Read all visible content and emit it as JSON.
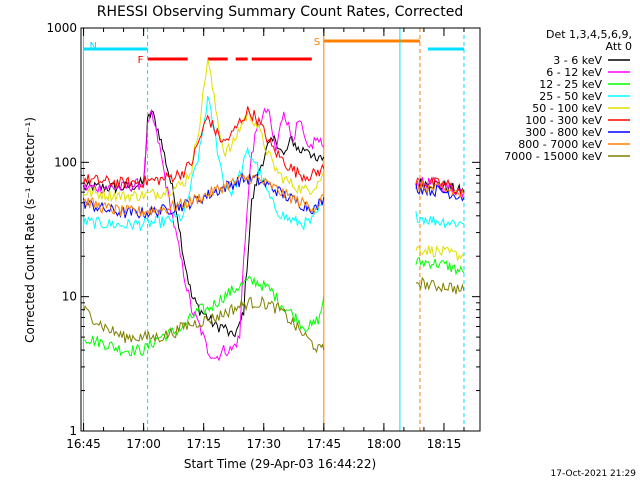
{
  "chart_data": {
    "type": "line",
    "title": "RHESSI Observing Summary Count Rates, Corrected",
    "xlabel": "Start Time (29-Apr-03 16:44:22)",
    "ylabel": "Corrected Count Rate (s⁻¹ detector⁻¹)",
    "y_scale": "log",
    "ylim": [
      1,
      1000
    ],
    "xlim": [
      "16:44:22",
      "18:24:00"
    ],
    "x_ticks": [
      "16:45",
      "17:00",
      "17:15",
      "17:30",
      "17:45",
      "18:00",
      "18:15"
    ],
    "y_ticks": [
      "1",
      "10",
      "100",
      "1000"
    ],
    "legend_header": [
      "Det 1,3,4,5,6,9,",
      "Att 0"
    ],
    "legend_position": "top-right",
    "timestamp": "17-Oct-2021 21:29",
    "flags": [
      {
        "label": "N",
        "color": "#00e0ff",
        "segments": [
          [
            "16:45",
            "17:01"
          ],
          [
            "18:11",
            "18:20"
          ]
        ]
      },
      {
        "label": "F",
        "color": "#ff0000",
        "segments": [
          [
            "17:01",
            "17:11"
          ],
          [
            "17:16",
            "17:21"
          ],
          [
            "17:23",
            "17:26"
          ],
          [
            "17:27",
            "17:42"
          ]
        ]
      },
      {
        "label": "S",
        "color": "#ff8000",
        "segments": [
          [
            "17:45",
            "18:09"
          ]
        ]
      }
    ],
    "vlines": [
      {
        "time": "16:45",
        "color": "#00e0ff",
        "style": "solid"
      },
      {
        "time": "17:01",
        "color": "#00e0ff",
        "style": "dashed"
      },
      {
        "time": "17:45",
        "color": "#ff8000",
        "style": "solid"
      },
      {
        "time": "18:04",
        "color": "#00e0ff",
        "style": "solid"
      },
      {
        "time": "18:09",
        "color": "#ff8000",
        "style": "dashed"
      },
      {
        "time": "18:20",
        "color": "#00e0ff",
        "style": "dashed"
      }
    ],
    "series": [
      {
        "name": "3 - 6 keV",
        "color": "#000000",
        "segments": [
          [
            [
              "16:45",
              65
            ],
            [
              "16:55",
              65
            ],
            [
              "17:00",
              70
            ],
            [
              "17:01",
              200
            ],
            [
              "17:02",
              240
            ],
            [
              "17:04",
              160
            ],
            [
              "17:06",
              90
            ],
            [
              "17:08",
              50
            ],
            [
              "17:10",
              20
            ],
            [
              "17:12",
              10
            ],
            [
              "17:14",
              8
            ],
            [
              "17:16",
              7
            ],
            [
              "17:18",
              6
            ],
            [
              "17:20",
              6
            ],
            [
              "17:22",
              5
            ],
            [
              "17:24",
              6
            ],
            [
              "17:25",
              8
            ],
            [
              "17:27",
              50
            ],
            [
              "17:29",
              90
            ],
            [
              "17:31",
              130
            ],
            [
              "17:33",
              150
            ],
            [
              "17:35",
              110
            ],
            [
              "17:37",
              150
            ],
            [
              "17:39",
              120
            ],
            [
              "17:41",
              130
            ],
            [
              "17:43",
              100
            ],
            [
              "17:45",
              110
            ]
          ],
          [
            [
              "18:08",
              70
            ],
            [
              "18:12",
              70
            ],
            [
              "18:16",
              65
            ],
            [
              "18:20",
              60
            ]
          ]
        ]
      },
      {
        "name": "6 - 12 keV",
        "color": "#ff00ff",
        "segments": [
          [
            [
              "16:45",
              65
            ],
            [
              "16:55",
              65
            ],
            [
              "17:00",
              70
            ],
            [
              "17:01",
              180
            ],
            [
              "17:02",
              230
            ],
            [
              "17:04",
              130
            ],
            [
              "17:06",
              60
            ],
            [
              "17:08",
              30
            ],
            [
              "17:10",
              15
            ],
            [
              "17:12",
              8
            ],
            [
              "17:14",
              6
            ],
            [
              "17:16",
              4
            ],
            [
              "17:18",
              3.5
            ],
            [
              "17:20",
              4
            ],
            [
              "17:22",
              4
            ],
            [
              "17:24",
              5
            ],
            [
              "17:25",
              20
            ],
            [
              "17:27",
              120
            ],
            [
              "17:29",
              200
            ],
            [
              "17:31",
              250
            ],
            [
              "17:33",
              120
            ],
            [
              "17:35",
              250
            ],
            [
              "17:37",
              150
            ],
            [
              "17:39",
              200
            ],
            [
              "17:41",
              120
            ],
            [
              "17:43",
              150
            ],
            [
              "17:45",
              130
            ]
          ],
          [
            [
              "18:08",
              70
            ],
            [
              "18:12",
              70
            ],
            [
              "18:16",
              65
            ],
            [
              "18:20",
              60
            ]
          ]
        ]
      },
      {
        "name": "12 - 25 keV",
        "color": "#00ff00",
        "segments": [
          [
            [
              "16:45",
              5
            ],
            [
              "16:50",
              4.5
            ],
            [
              "16:55",
              4
            ],
            [
              "17:00",
              4
            ],
            [
              "17:04",
              5
            ],
            [
              "17:08",
              5.5
            ],
            [
              "17:10",
              6
            ],
            [
              "17:12",
              7
            ],
            [
              "17:14",
              8
            ],
            [
              "17:16",
              8
            ],
            [
              "17:18",
              9
            ],
            [
              "17:20",
              10
            ],
            [
              "17:22",
              11
            ],
            [
              "17:24",
              12
            ],
            [
              "17:26",
              13
            ],
            [
              "17:28",
              13
            ],
            [
              "17:30",
              12
            ],
            [
              "17:32",
              11
            ],
            [
              "17:34",
              9
            ],
            [
              "17:36",
              8
            ],
            [
              "17:38",
              7
            ],
            [
              "17:40",
              6
            ],
            [
              "17:42",
              6
            ],
            [
              "17:44",
              7
            ],
            [
              "17:45",
              10
            ]
          ],
          [
            [
              "18:08",
              18
            ],
            [
              "18:12",
              18
            ],
            [
              "18:16",
              17
            ],
            [
              "18:20",
              15
            ]
          ]
        ]
      },
      {
        "name": "25 - 50 keV",
        "color": "#00ffff",
        "segments": [
          [
            [
              "16:45",
              36
            ],
            [
              "16:55",
              34
            ],
            [
              "17:00",
              35
            ],
            [
              "17:05",
              36
            ],
            [
              "17:08",
              38
            ],
            [
              "17:10",
              40
            ],
            [
              "17:12",
              70
            ],
            [
              "17:14",
              120
            ],
            [
              "17:16",
              300
            ],
            [
              "17:18",
              150
            ],
            [
              "17:20",
              70
            ],
            [
              "17:22",
              60
            ],
            [
              "17:24",
              80
            ],
            [
              "17:26",
              120
            ],
            [
              "17:28",
              100
            ],
            [
              "17:30",
              70
            ],
            [
              "17:32",
              50
            ],
            [
              "17:34",
              42
            ],
            [
              "17:36",
              38
            ],
            [
              "17:38",
              36
            ],
            [
              "17:40",
              35
            ],
            [
              "17:42",
              36
            ],
            [
              "17:45",
              50
            ]
          ],
          [
            [
              "18:08",
              40
            ],
            [
              "18:12",
              37
            ],
            [
              "18:16",
              36
            ],
            [
              "18:20",
              35
            ]
          ]
        ]
      },
      {
        "name": "50 - 100 keV",
        "color": "#e0e000",
        "segments": [
          [
            [
              "16:45",
              60
            ],
            [
              "16:50",
              58
            ],
            [
              "16:55",
              56
            ],
            [
              "17:00",
              57
            ],
            [
              "17:05",
              60
            ],
            [
              "17:08",
              65
            ],
            [
              "17:10",
              70
            ],
            [
              "17:12",
              90
            ],
            [
              "17:14",
              200
            ],
            [
              "17:16",
              600
            ],
            [
              "17:18",
              250
            ],
            [
              "17:20",
              120
            ],
            [
              "17:22",
              130
            ],
            [
              "17:24",
              180
            ],
            [
              "17:26",
              230
            ],
            [
              "17:28",
              200
            ],
            [
              "17:30",
              140
            ],
            [
              "17:32",
              100
            ],
            [
              "17:34",
              80
            ],
            [
              "17:36",
              72
            ],
            [
              "17:38",
              66
            ],
            [
              "17:40",
              62
            ],
            [
              "17:42",
              64
            ],
            [
              "17:45",
              80
            ]
          ],
          [
            [
              "18:08",
              23
            ],
            [
              "18:12",
              22
            ],
            [
              "18:16",
              21
            ],
            [
              "18:20",
              20
            ]
          ]
        ]
      },
      {
        "name": "100 - 300 keV",
        "color": "#ff0000",
        "segments": [
          [
            [
              "16:45",
              75
            ],
            [
              "16:50",
              72
            ],
            [
              "16:55",
              70
            ],
            [
              "17:00",
              72
            ],
            [
              "17:05",
              75
            ],
            [
              "17:08",
              80
            ],
            [
              "17:10",
              85
            ],
            [
              "17:12",
              100
            ],
            [
              "17:14",
              150
            ],
            [
              "17:16",
              220
            ],
            [
              "17:18",
              170
            ],
            [
              "17:20",
              140
            ],
            [
              "17:22",
              160
            ],
            [
              "17:24",
              200
            ],
            [
              "17:26",
              240
            ],
            [
              "17:28",
              220
            ],
            [
              "17:30",
              170
            ],
            [
              "17:32",
              130
            ],
            [
              "17:34",
              110
            ],
            [
              "17:36",
              95
            ],
            [
              "17:38",
              85
            ],
            [
              "17:40",
              80
            ],
            [
              "17:42",
              80
            ],
            [
              "17:45",
              90
            ]
          ],
          [
            [
              "18:08",
              72
            ],
            [
              "18:12",
              70
            ],
            [
              "18:16",
              68
            ],
            [
              "18:20",
              58
            ]
          ]
        ]
      },
      {
        "name": "300 - 800 keV",
        "color": "#0000ff",
        "segments": [
          [
            [
              "16:45",
              50
            ],
            [
              "16:50",
              45
            ],
            [
              "16:55",
              42
            ],
            [
              "17:00",
              42
            ],
            [
              "17:05",
              44
            ],
            [
              "17:10",
              48
            ],
            [
              "17:15",
              55
            ],
            [
              "17:20",
              65
            ],
            [
              "17:25",
              75
            ],
            [
              "17:28",
              75
            ],
            [
              "17:32",
              65
            ],
            [
              "17:36",
              55
            ],
            [
              "17:40",
              48
            ],
            [
              "17:43",
              45
            ],
            [
              "17:45",
              55
            ]
          ],
          [
            [
              "18:08",
              65
            ],
            [
              "18:12",
              62
            ],
            [
              "18:16",
              60
            ],
            [
              "18:20",
              55
            ]
          ]
        ]
      },
      {
        "name": "800 - 7000 keV",
        "color": "#ff8000",
        "segments": [
          [
            [
              "16:45",
              52
            ],
            [
              "16:50",
              46
            ],
            [
              "16:55",
              43
            ],
            [
              "17:00",
              43
            ],
            [
              "17:05",
              45
            ],
            [
              "17:10",
              49
            ],
            [
              "17:15",
              56
            ],
            [
              "17:20",
              66
            ],
            [
              "17:25",
              76
            ],
            [
              "17:28",
              76
            ],
            [
              "17:32",
              66
            ],
            [
              "17:36",
              56
            ],
            [
              "17:40",
              49
            ],
            [
              "17:43",
              46
            ],
            [
              "17:45",
              56
            ]
          ],
          [
            [
              "18:08",
              67
            ],
            [
              "18:12",
              64
            ],
            [
              "18:16",
              62
            ],
            [
              "18:20",
              57
            ]
          ]
        ]
      },
      {
        "name": "7000 - 15000 keV",
        "color": "#808000",
        "segments": [
          [
            [
              "16:45",
              8
            ],
            [
              "16:50",
              6
            ],
            [
              "16:55",
              5
            ],
            [
              "17:00",
              5
            ],
            [
              "17:04",
              5
            ],
            [
              "17:08",
              5.5
            ],
            [
              "17:10",
              6
            ],
            [
              "17:14",
              6.5
            ],
            [
              "17:18",
              7
            ],
            [
              "17:22",
              8
            ],
            [
              "17:26",
              9
            ],
            [
              "17:30",
              9
            ],
            [
              "17:34",
              8
            ],
            [
              "17:38",
              6
            ],
            [
              "17:42",
              4.5
            ],
            [
              "17:44",
              4
            ],
            [
              "17:45",
              4
            ]
          ],
          [
            [
              "18:08",
              13
            ],
            [
              "18:12",
              12
            ],
            [
              "18:16",
              12
            ],
            [
              "18:20",
              11
            ]
          ]
        ]
      }
    ]
  }
}
